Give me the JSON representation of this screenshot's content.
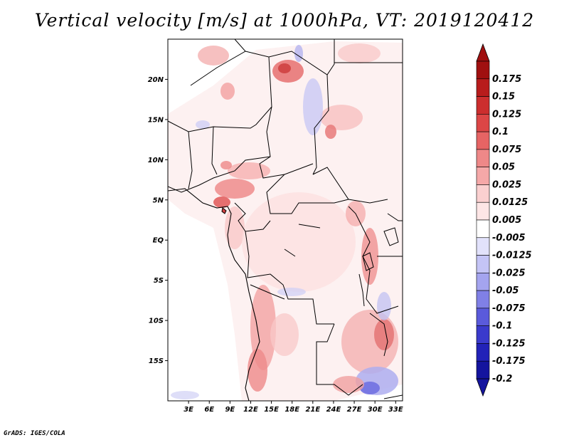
{
  "title": "Vertical velocity [m/s] at 1000hPa, VT: 2019120412",
  "footer": "GrADS: IGES/COLA",
  "map": {
    "lon_range": [
      0,
      34
    ],
    "lat_range": [
      -20,
      25
    ],
    "lat_ticks": [
      {
        "value": 20,
        "label": "20N"
      },
      {
        "value": 15,
        "label": "15N"
      },
      {
        "value": 10,
        "label": "10N"
      },
      {
        "value": 5,
        "label": "5N"
      },
      {
        "value": 0,
        "label": "EQ"
      },
      {
        "value": -5,
        "label": "5S"
      },
      {
        "value": -10,
        "label": "10S"
      },
      {
        "value": -15,
        "label": "15S"
      }
    ],
    "lon_ticks": [
      {
        "value": 3,
        "label": "3E"
      },
      {
        "value": 6,
        "label": "6E"
      },
      {
        "value": 9,
        "label": "9E"
      },
      {
        "value": 12,
        "label": "12E"
      },
      {
        "value": 15,
        "label": "15E"
      },
      {
        "value": 18,
        "label": "18E"
      },
      {
        "value": 21,
        "label": "21E"
      },
      {
        "value": 24,
        "label": "24E"
      },
      {
        "value": 27,
        "label": "27E"
      },
      {
        "value": 30,
        "label": "30E"
      },
      {
        "value": 33,
        "label": "33E"
      }
    ]
  },
  "colorbar": {
    "levels": [
      {
        "label": "0.175",
        "color": "#a01010"
      },
      {
        "label": "0.15",
        "color": "#b81c1c"
      },
      {
        "label": "0.125",
        "color": "#cc2e2e"
      },
      {
        "label": "0.1",
        "color": "#dc4646"
      },
      {
        "label": "0.075",
        "color": "#e66464"
      },
      {
        "label": "0.05",
        "color": "#ee8888"
      },
      {
        "label": "0.025",
        "color": "#f5a8a8"
      },
      {
        "label": "0.0125",
        "color": "#fad0d0"
      },
      {
        "label": "0.005",
        "color": "#fde6e6"
      },
      {
        "label": "-0.005",
        "color": "#ffffff"
      },
      {
        "label": "-0.0125",
        "color": "#e2e2fb"
      },
      {
        "label": "-0.025",
        "color": "#c4c4f6"
      },
      {
        "label": "-0.05",
        "color": "#a4a4ef"
      },
      {
        "label": "-0.075",
        "color": "#8080e6"
      },
      {
        "label": "-0.1",
        "color": "#5a5adb"
      },
      {
        "label": "-0.125",
        "color": "#3a3acc"
      },
      {
        "label": "-0.175",
        "color": "#2222b8"
      },
      {
        "label": "-0.2",
        "color": "#14149e"
      }
    ],
    "top_arrow_color": "#a01010",
    "bottom_arrow_color": "#14149e"
  }
}
